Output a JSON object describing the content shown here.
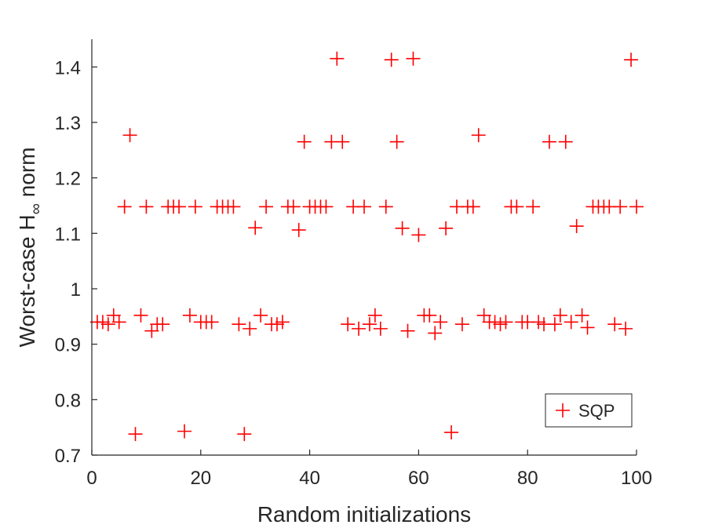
{
  "chart_data": {
    "type": "scatter",
    "title": "",
    "xlabel": "Random initializations",
    "ylabel_main": "Worst-case H",
    "ylabel_sub": "∞",
    "ylabel_tail": " norm",
    "xlim": [
      0,
      100
    ],
    "ylim": [
      0.7,
      1.45
    ],
    "xticks": [
      0,
      20,
      40,
      60,
      80,
      100
    ],
    "xtick_labels": [
      "0",
      "20",
      "40",
      "60",
      "80",
      "100"
    ],
    "yticks": [
      0.7,
      0.8,
      0.9,
      1.0,
      1.1,
      1.2,
      1.3,
      1.4
    ],
    "ytick_labels": [
      "0.7",
      "0.8",
      "0.9",
      "1",
      "1.1",
      "1.2",
      "1.3",
      "1.4"
    ],
    "grid": false,
    "legend_position": "bottom-right",
    "series": [
      {
        "name": "SQP",
        "marker": "+",
        "color": "#ff0000",
        "x": [
          1,
          2,
          3,
          4,
          5,
          6,
          7,
          8,
          9,
          10,
          11,
          12,
          13,
          14,
          15,
          16,
          17,
          18,
          19,
          20,
          21,
          22,
          23,
          24,
          25,
          26,
          27,
          28,
          29,
          30,
          31,
          32,
          33,
          34,
          35,
          36,
          37,
          38,
          39,
          40,
          41,
          42,
          43,
          44,
          45,
          46,
          47,
          48,
          49,
          50,
          51,
          52,
          53,
          54,
          55,
          56,
          57,
          58,
          59,
          60,
          61,
          62,
          63,
          64,
          65,
          66,
          67,
          68,
          69,
          70,
          71,
          72,
          73,
          74,
          75,
          76,
          77,
          78,
          79,
          80,
          81,
          82,
          83,
          84,
          85,
          86,
          87,
          88,
          89,
          90,
          91,
          92,
          93,
          94,
          95,
          96,
          97,
          98,
          99,
          100
        ],
        "y": [
          0.94,
          0.94,
          0.936,
          0.952,
          0.94,
          1.148,
          1.277,
          0.738,
          0.952,
          1.148,
          0.924,
          0.936,
          0.936,
          1.148,
          1.148,
          1.148,
          0.743,
          0.952,
          1.148,
          0.94,
          0.94,
          0.94,
          1.148,
          1.148,
          1.148,
          1.148,
          0.936,
          0.738,
          0.928,
          1.11,
          0.952,
          1.148,
          0.936,
          0.936,
          0.94,
          1.148,
          1.148,
          1.106,
          1.265,
          1.148,
          1.148,
          1.148,
          1.148,
          1.265,
          1.415,
          1.265,
          0.936,
          1.148,
          0.928,
          1.148,
          0.936,
          0.952,
          0.928,
          1.148,
          1.413,
          1.265,
          1.109,
          0.924,
          1.415,
          1.097,
          0.952,
          0.952,
          0.92,
          0.94,
          1.109,
          0.741,
          1.148,
          0.936,
          1.148,
          1.148,
          1.277,
          0.952,
          0.94,
          0.94,
          0.936,
          0.94,
          1.148,
          1.148,
          0.94,
          0.94,
          1.148,
          0.94,
          0.936,
          1.265,
          0.936,
          0.952,
          1.265,
          0.94,
          1.113,
          0.952,
          0.93,
          1.148,
          1.148,
          1.148,
          1.148,
          0.936,
          1.148,
          0.928,
          1.413,
          1.148
        ]
      }
    ]
  }
}
